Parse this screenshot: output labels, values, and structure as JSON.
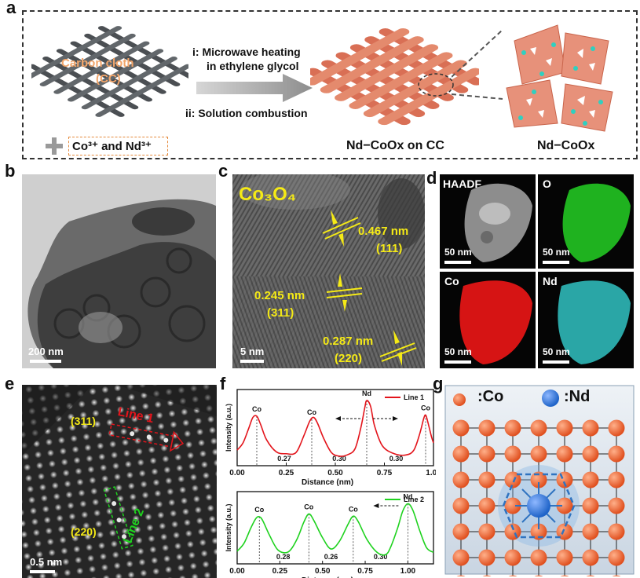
{
  "panel_labels": {
    "a": "a",
    "b": "b",
    "c": "c",
    "d": "d",
    "e": "e",
    "f": "f",
    "g": "g"
  },
  "scheme": {
    "cloth_label_1": "Carbon cloth",
    "cloth_label_2": "(CC)",
    "step1_line1": "i: Microwave heating",
    "step1_line2": "in ethylene glycol",
    "step2": "ii: Solution combustion",
    "ions": "Co³⁺ and Nd³⁺",
    "product_on_cc": "Nd−CoOx on CC",
    "product": "Nd−CoOx"
  },
  "tem": {
    "scale": "200 nm"
  },
  "hrtem": {
    "title": "Co₃O₄",
    "scale": "5 nm",
    "fringes": [
      {
        "d": "0.467 nm",
        "plane": "(111)"
      },
      {
        "d": "0.245 nm",
        "plane": "(311)"
      },
      {
        "d": "0.287 nm",
        "plane": "(220)"
      }
    ]
  },
  "mapping": {
    "tiles": [
      {
        "label": "HAADF",
        "scale": "50 nm",
        "color": "#8a8a8a"
      },
      {
        "label": "O",
        "scale": "50 nm",
        "color": "#1fb21f"
      },
      {
        "label": "Co",
        "scale": "50 nm",
        "color": "#d61414"
      },
      {
        "label": "Nd",
        "scale": "50 nm",
        "color": "#2aa6a6"
      }
    ]
  },
  "haadf": {
    "scale": "0.5 nm",
    "plane1": "(311)",
    "line1": "Line 1",
    "plane2": "(220)",
    "line2": "Line 2"
  },
  "chart_data": [
    {
      "type": "line",
      "xlabel": "Distance (nm)",
      "ylabel": "Intensity (a.u.)",
      "xlim": [
        0,
        1.0
      ],
      "xticks": [
        "0.00",
        "0.25",
        "0.50",
        "0.75",
        "1.00"
      ],
      "legend": "Line 1",
      "legend_position": "top-right",
      "color": "#e3141b",
      "series": [
        {
          "name": "Line 1",
          "x": [
            0,
            0.03,
            0.06,
            0.08,
            0.1,
            0.12,
            0.15,
            0.2,
            0.25,
            0.3,
            0.34,
            0.37,
            0.39,
            0.41,
            0.44,
            0.48,
            0.52,
            0.56,
            0.6,
            0.63,
            0.65,
            0.66,
            0.68,
            0.7,
            0.74,
            0.8,
            0.86,
            0.9,
            0.93,
            0.95,
            0.96,
            0.97,
            0.99,
            1.0
          ],
          "y": [
            0.18,
            0.3,
            0.55,
            0.72,
            0.74,
            0.6,
            0.35,
            0.15,
            0.12,
            0.14,
            0.42,
            0.66,
            0.72,
            0.62,
            0.38,
            0.14,
            0.08,
            0.1,
            0.2,
            0.55,
            0.88,
            1.0,
            0.9,
            0.58,
            0.25,
            0.12,
            0.1,
            0.18,
            0.45,
            0.7,
            0.76,
            0.66,
            0.4,
            0.3
          ]
        }
      ],
      "peaks": [
        {
          "x": 0.1,
          "label": "Co"
        },
        {
          "x": 0.38,
          "label": "Co"
        },
        {
          "x": 0.66,
          "label": "Nd"
        },
        {
          "x": 0.96,
          "label": "Co"
        }
      ],
      "spacings": [
        {
          "x": 0.24,
          "label": "0.27"
        },
        {
          "x": 0.52,
          "label": "0.30"
        },
        {
          "x": 0.81,
          "label": "0.30"
        }
      ]
    },
    {
      "type": "line",
      "xlabel": "Distance (nm)",
      "ylabel": "Intensity (a.u.)",
      "xlim": [
        0,
        1.15
      ],
      "xticks": [
        "0.00",
        "0.25",
        "0.50",
        "0.75",
        "1.00"
      ],
      "legend": "Line 2",
      "legend_position": "top-right",
      "color": "#1fd21f",
      "series": [
        {
          "name": "Line 2",
          "x": [
            0,
            0.04,
            0.08,
            0.11,
            0.13,
            0.15,
            0.19,
            0.24,
            0.3,
            0.35,
            0.39,
            0.42,
            0.45,
            0.5,
            0.55,
            0.6,
            0.65,
            0.68,
            0.71,
            0.76,
            0.82,
            0.87,
            0.9,
            0.94,
            0.97,
            1.0,
            1.03,
            1.07,
            1.11,
            1.15
          ],
          "y": [
            0.14,
            0.28,
            0.55,
            0.72,
            0.75,
            0.68,
            0.42,
            0.16,
            0.13,
            0.35,
            0.65,
            0.8,
            0.68,
            0.38,
            0.18,
            0.32,
            0.62,
            0.76,
            0.66,
            0.35,
            0.12,
            0.08,
            0.22,
            0.55,
            0.85,
            0.98,
            0.86,
            0.5,
            0.2,
            0.12
          ]
        }
      ],
      "peaks": [
        {
          "x": 0.13,
          "label": "Co"
        },
        {
          "x": 0.42,
          "label": "Co"
        },
        {
          "x": 0.68,
          "label": "Co"
        },
        {
          "x": 1.0,
          "label": "Nd"
        }
      ],
      "spacings": [
        {
          "x": 0.27,
          "label": "0.28"
        },
        {
          "x": 0.55,
          "label": "0.26"
        },
        {
          "x": 0.84,
          "label": "0.30"
        }
      ]
    }
  ],
  "model": {
    "co_label": ":Co",
    "nd_label": ":Nd",
    "co_color": "#e0501f",
    "nd_color": "#1e63c8"
  }
}
